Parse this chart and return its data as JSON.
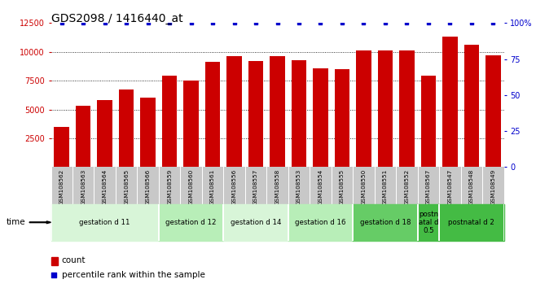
{
  "title": "GDS2098 / 1416440_at",
  "categories": [
    "GSM108562",
    "GSM108563",
    "GSM108564",
    "GSM108565",
    "GSM108566",
    "GSM108559",
    "GSM108560",
    "GSM108561",
    "GSM108556",
    "GSM108557",
    "GSM108558",
    "GSM108553",
    "GSM108554",
    "GSM108555",
    "GSM108550",
    "GSM108551",
    "GSM108552",
    "GSM108567",
    "GSM108547",
    "GSM108548",
    "GSM108549"
  ],
  "bar_values": [
    3500,
    5300,
    5800,
    6700,
    6000,
    7900,
    7500,
    9100,
    9600,
    9200,
    9600,
    9300,
    8600,
    8500,
    10100,
    10100,
    10100,
    7900,
    11300,
    10600,
    9700
  ],
  "bar_color": "#cc0000",
  "percentile_color": "#0000cc",
  "ylim_left": [
    0,
    12500
  ],
  "ylim_right": [
    0,
    100
  ],
  "yticks_left": [
    2500,
    5000,
    7500,
    10000,
    12500
  ],
  "yticks_right": [
    0,
    25,
    50,
    75,
    100
  ],
  "grid_values": [
    2500,
    5000,
    7500,
    10000
  ],
  "groups": [
    {
      "label": "gestation d 11",
      "start": 0,
      "end": 5,
      "color": "#d8f5d8"
    },
    {
      "label": "gestation d 12",
      "start": 5,
      "end": 8,
      "color": "#b8eeb8"
    },
    {
      "label": "gestation d 14",
      "start": 8,
      "end": 11,
      "color": "#d8f5d8"
    },
    {
      "label": "gestation d 16",
      "start": 11,
      "end": 14,
      "color": "#b8eeb8"
    },
    {
      "label": "gestation d 18",
      "start": 14,
      "end": 17,
      "color": "#66cc66"
    },
    {
      "label": "postn\natal d\n0.5",
      "start": 17,
      "end": 18,
      "color": "#44bb44"
    },
    {
      "label": "postnatal d 2",
      "start": 18,
      "end": 21,
      "color": "#44bb44"
    }
  ],
  "legend_count_label": "count",
  "legend_percentile_label": "percentile rank within the sample",
  "background_color": "#ffffff",
  "tick_area_color": "#c8c8c8",
  "title_fontsize": 10,
  "bar_width": 0.7
}
